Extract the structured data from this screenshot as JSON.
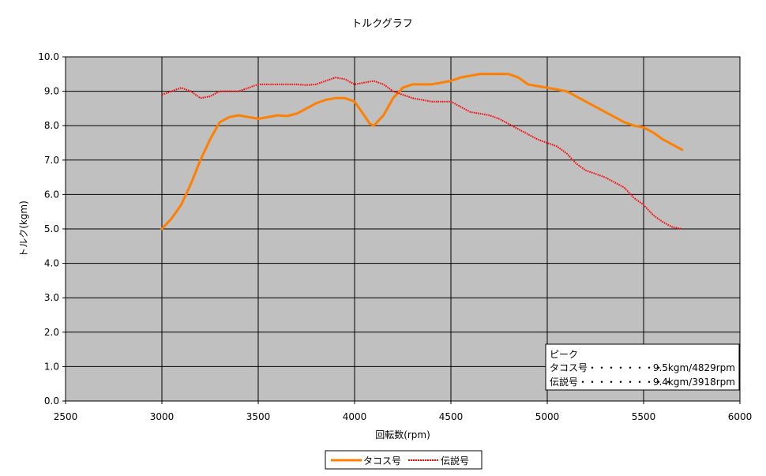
{
  "chart_data": {
    "type": "line",
    "title": "トルクグラフ",
    "xlabel": "回転数(rpm)",
    "ylabel": "トルク(kgm)",
    "xlim": [
      2500,
      6000
    ],
    "ylim": [
      0,
      10
    ],
    "xticks": [
      2500,
      3000,
      3500,
      4000,
      4500,
      5000,
      5500,
      6000
    ],
    "yticks": [
      0,
      1,
      2,
      3,
      4,
      5,
      6,
      7,
      8,
      9,
      10
    ],
    "ytick_labels": [
      "0.0",
      "1.0",
      "2.0",
      "3.0",
      "4.0",
      "5.0",
      "6.0",
      "7.0",
      "8.0",
      "9.0",
      "10.0"
    ],
    "grid": true,
    "legend_position": "bottom",
    "plot_background": "#c0c0c0",
    "series": [
      {
        "name": "タコス号",
        "color": "#ff7f00",
        "style": "solid",
        "points": [
          [
            3000,
            5.0
          ],
          [
            3050,
            5.3
          ],
          [
            3100,
            5.7
          ],
          [
            3150,
            6.3
          ],
          [
            3200,
            7.0
          ],
          [
            3250,
            7.6
          ],
          [
            3300,
            8.1
          ],
          [
            3350,
            8.25
          ],
          [
            3400,
            8.3
          ],
          [
            3450,
            8.25
          ],
          [
            3500,
            8.2
          ],
          [
            3550,
            8.25
          ],
          [
            3600,
            8.3
          ],
          [
            3650,
            8.28
          ],
          [
            3700,
            8.35
          ],
          [
            3750,
            8.5
          ],
          [
            3800,
            8.65
          ],
          [
            3850,
            8.75
          ],
          [
            3900,
            8.8
          ],
          [
            3950,
            8.8
          ],
          [
            4000,
            8.7
          ],
          [
            4050,
            8.3
          ],
          [
            4080,
            8.05
          ],
          [
            4100,
            8.0
          ],
          [
            4150,
            8.3
          ],
          [
            4200,
            8.8
          ],
          [
            4250,
            9.1
          ],
          [
            4300,
            9.2
          ],
          [
            4350,
            9.2
          ],
          [
            4400,
            9.2
          ],
          [
            4450,
            9.25
          ],
          [
            4500,
            9.3
          ],
          [
            4550,
            9.4
          ],
          [
            4600,
            9.45
          ],
          [
            4650,
            9.5
          ],
          [
            4700,
            9.5
          ],
          [
            4750,
            9.5
          ],
          [
            4800,
            9.5
          ],
          [
            4850,
            9.4
          ],
          [
            4900,
            9.2
          ],
          [
            4950,
            9.15
          ],
          [
            5000,
            9.1
          ],
          [
            5050,
            9.05
          ],
          [
            5100,
            9.0
          ],
          [
            5150,
            8.85
          ],
          [
            5200,
            8.7
          ],
          [
            5250,
            8.55
          ],
          [
            5300,
            8.4
          ],
          [
            5350,
            8.25
          ],
          [
            5400,
            8.1
          ],
          [
            5450,
            8.0
          ],
          [
            5500,
            7.95
          ],
          [
            5550,
            7.8
          ],
          [
            5600,
            7.6
          ],
          [
            5650,
            7.45
          ],
          [
            5700,
            7.3
          ]
        ]
      },
      {
        "name": "伝説号",
        "color": "#ff0000",
        "style": "dotted",
        "points": [
          [
            3000,
            8.9
          ],
          [
            3050,
            9.0
          ],
          [
            3100,
            9.1
          ],
          [
            3150,
            9.0
          ],
          [
            3200,
            8.8
          ],
          [
            3250,
            8.85
          ],
          [
            3300,
            9.0
          ],
          [
            3350,
            9.0
          ],
          [
            3400,
            9.0
          ],
          [
            3450,
            9.1
          ],
          [
            3500,
            9.2
          ],
          [
            3550,
            9.2
          ],
          [
            3600,
            9.2
          ],
          [
            3650,
            9.2
          ],
          [
            3700,
            9.2
          ],
          [
            3750,
            9.18
          ],
          [
            3800,
            9.2
          ],
          [
            3850,
            9.3
          ],
          [
            3900,
            9.4
          ],
          [
            3950,
            9.35
          ],
          [
            4000,
            9.2
          ],
          [
            4050,
            9.25
          ],
          [
            4100,
            9.3
          ],
          [
            4150,
            9.2
          ],
          [
            4200,
            9.0
          ],
          [
            4250,
            8.9
          ],
          [
            4300,
            8.8
          ],
          [
            4350,
            8.75
          ],
          [
            4400,
            8.7
          ],
          [
            4450,
            8.7
          ],
          [
            4500,
            8.7
          ],
          [
            4550,
            8.55
          ],
          [
            4600,
            8.4
          ],
          [
            4650,
            8.35
          ],
          [
            4700,
            8.3
          ],
          [
            4750,
            8.2
          ],
          [
            4800,
            8.05
          ],
          [
            4850,
            7.9
          ],
          [
            4900,
            7.75
          ],
          [
            4950,
            7.6
          ],
          [
            5000,
            7.5
          ],
          [
            5050,
            7.4
          ],
          [
            5100,
            7.2
          ],
          [
            5150,
            6.9
          ],
          [
            5200,
            6.7
          ],
          [
            5250,
            6.6
          ],
          [
            5300,
            6.5
          ],
          [
            5350,
            6.35
          ],
          [
            5400,
            6.2
          ],
          [
            5450,
            5.9
          ],
          [
            5500,
            5.7
          ],
          [
            5550,
            5.4
          ],
          [
            5600,
            5.2
          ],
          [
            5650,
            5.05
          ],
          [
            5700,
            5.0
          ]
        ]
      }
    ],
    "peak_box": {
      "heading": "ピーク",
      "rows": [
        {
          "label": "タコス号・・・・・・・・",
          "value": "9.5kgm/4829rpm"
        },
        {
          "label": "伝説号・・・・・・・・・・",
          "value": "9.4kgm/3918rpm"
        }
      ]
    }
  }
}
